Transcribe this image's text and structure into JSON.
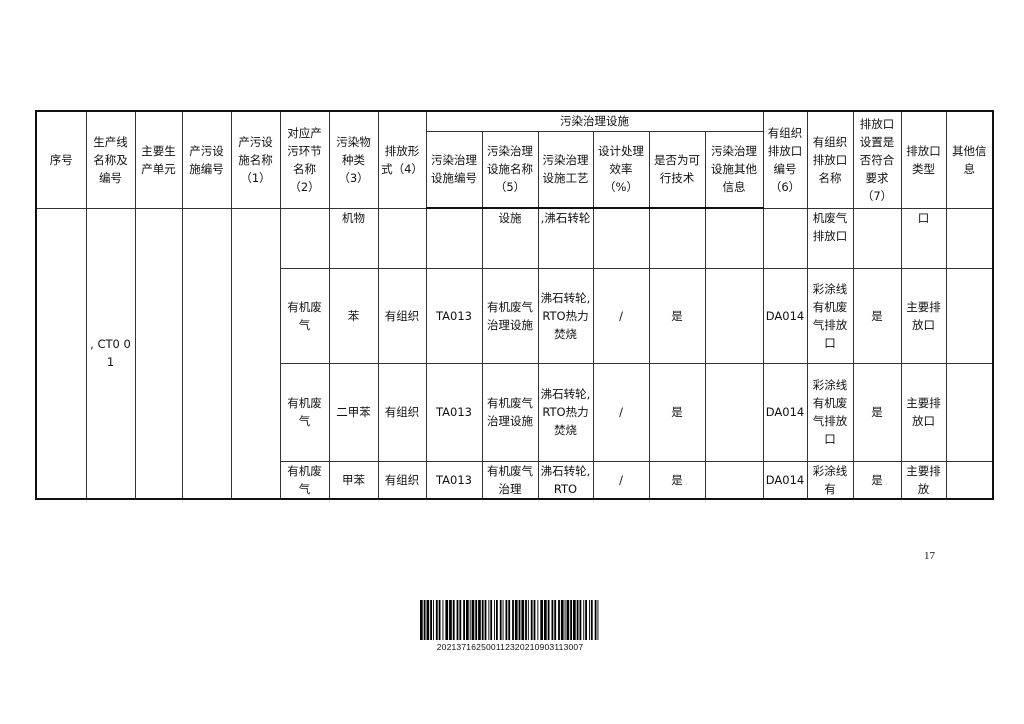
{
  "table": {
    "group_header": "污染治理设施",
    "headers": [
      "序号",
      "生产线名称及编号",
      "主要生产单元",
      "产污设施编号",
      "产污设施名称（1）",
      "对应产污环节名称（2）",
      "污染物种类（3）",
      "排放形式（4）"
    ],
    "sub_headers": [
      "污染治理设施编号",
      "污染治理设施名称（5）",
      "污染治理设施工艺",
      "设计处理效率（%）",
      "是否为可行技术",
      "污染治理设施其他信息"
    ],
    "tail_headers": [
      "有组织排放口编号（6）",
      "有组织排放口名称",
      "排放口设置是否符合要求（7）",
      "排放口类型",
      "其他信息"
    ],
    "merged": {
      "seq": "",
      "line": ", CT0 01",
      "unit": "",
      "facility_id": "",
      "facility_name": ""
    },
    "rows": [
      [
        "",
        "机物",
        "",
        "",
        "设施",
        ",沸石转轮",
        "",
        "",
        "",
        "",
        "机废气排放口",
        "",
        "口",
        ""
      ],
      [
        "有机废气",
        "苯",
        "有组织",
        "TA013",
        "有机废气治理设施",
        "沸石转轮,RTO热力焚烧",
        "/",
        "是",
        "",
        "DA014",
        "彩涂线有机废气排放口",
        "是",
        "主要排放口",
        ""
      ],
      [
        "有机废气",
        "二甲苯",
        "有组织",
        "TA013",
        "有机废气治理设施",
        "沸石转轮,RTO热力焚烧",
        "/",
        "是",
        "",
        "DA014",
        "彩涂线有机废气排放口",
        "是",
        "主要排放口",
        ""
      ],
      [
        "有机废气",
        "甲苯",
        "有组织",
        "TA013",
        "有机废气治理",
        "沸石转轮,RTO",
        "/",
        "是",
        "",
        "DA014",
        "彩涂线有",
        "是",
        "主要排放",
        ""
      ]
    ]
  },
  "page_number": "17",
  "barcode": "202137162500112320210903113007"
}
